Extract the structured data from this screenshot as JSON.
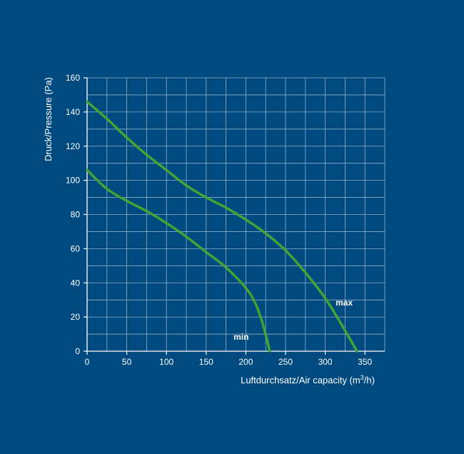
{
  "chart_data": {
    "type": "line",
    "title": "",
    "xlabel": "Luftdurchsatz/Air capacity (m³/h)",
    "xlabel_parts": {
      "before": "Luftdurchsatz/Air capacity (m",
      "sup": "3",
      "after": "/h)"
    },
    "ylabel": "Druck/Pressure (Pa)",
    "xlim": [
      0,
      375
    ],
    "ylim": [
      0,
      160
    ],
    "xticks": [
      0,
      50,
      100,
      150,
      200,
      250,
      300,
      350
    ],
    "yticks": [
      0,
      20,
      40,
      60,
      80,
      100,
      120,
      140,
      160
    ],
    "grid": true,
    "series": [
      {
        "name": "max",
        "x": [
          0,
          25,
          50,
          75,
          100,
          125,
          150,
          175,
          200,
          225,
          250,
          275,
          300,
          320,
          340
        ],
        "y": [
          146,
          136,
          125,
          115,
          106,
          97,
          90,
          84,
          77,
          69,
          59,
          46,
          31,
          16,
          0
        ]
      },
      {
        "name": "min",
        "x": [
          0,
          25,
          50,
          75,
          100,
          125,
          150,
          175,
          200,
          212,
          220,
          226,
          230
        ],
        "y": [
          106,
          95,
          88,
          82,
          75,
          67,
          58,
          49,
          37,
          28,
          18,
          8,
          0
        ]
      }
    ],
    "colors": {
      "background": "#004a80",
      "grid": "#8fb0cc",
      "axis": "#ffffff",
      "line": "#3fa535",
      "text": "#ffffff"
    }
  }
}
